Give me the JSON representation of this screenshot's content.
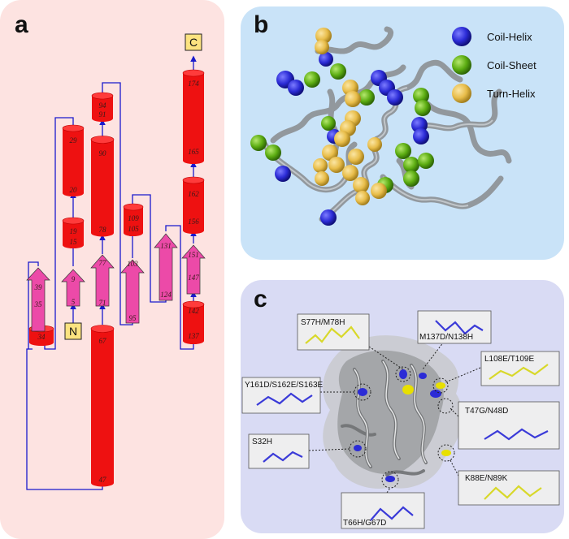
{
  "panels": {
    "a": {
      "label": "a"
    },
    "b": {
      "label": "b"
    },
    "c": {
      "label": "c"
    }
  },
  "topology": {
    "terminal_n": "N",
    "terminal_c": "C",
    "elements": [
      {
        "id": "h34",
        "type": "helix",
        "labels": [
          "34"
        ]
      },
      {
        "id": "s35",
        "type": "strand",
        "labels": [
          "39",
          "35"
        ]
      },
      {
        "id": "s5",
        "type": "strand",
        "labels": [
          "9",
          "5"
        ]
      },
      {
        "id": "h15",
        "type": "helix",
        "labels": [
          "19",
          "15"
        ]
      },
      {
        "id": "h20",
        "type": "helix",
        "labels": [
          "29",
          "20"
        ]
      },
      {
        "id": "s71",
        "type": "strand",
        "labels": [
          "77",
          "71"
        ]
      },
      {
        "id": "h47",
        "type": "helix",
        "labels": [
          "67",
          "47"
        ]
      },
      {
        "id": "h78",
        "type": "helix",
        "labels": [
          "90",
          "78"
        ]
      },
      {
        "id": "h91",
        "type": "helix",
        "labels": [
          "94",
          "91"
        ]
      },
      {
        "id": "s95",
        "type": "strand",
        "labels": [
          "103",
          "95"
        ]
      },
      {
        "id": "h105",
        "type": "helix",
        "labels": [
          "109",
          "105"
        ]
      },
      {
        "id": "s124",
        "type": "strand",
        "labels": [
          "131",
          "124"
        ]
      },
      {
        "id": "h137",
        "type": "helix",
        "labels": [
          "142",
          "137"
        ]
      },
      {
        "id": "s147",
        "type": "strand",
        "labels": [
          "151",
          "147"
        ]
      },
      {
        "id": "h156",
        "type": "helix",
        "labels": [
          "162",
          "156"
        ]
      },
      {
        "id": "h165",
        "type": "helix",
        "labels": [
          "174",
          "165"
        ]
      }
    ]
  },
  "legend": [
    {
      "label": "Coil-Helix",
      "color": "#2b2bd6"
    },
    {
      "label": "Coil-Sheet",
      "color": "#5cad12"
    },
    {
      "label": "Turn-Helix",
      "color": "#e8bd4a"
    }
  ],
  "mutations": [
    {
      "label": "S77H/M78H"
    },
    {
      "label": "M137D/N138H"
    },
    {
      "label": "L108E/T109E"
    },
    {
      "label": "Y161D/S162E/S163E"
    },
    {
      "label": "T47G/N48D"
    },
    {
      "label": "S32H"
    },
    {
      "label": "K88E/N89K"
    },
    {
      "label": "T66H/G67D"
    }
  ],
  "colors": {
    "helix": "#ee1111",
    "strand": "#ec4aa8",
    "connector": "#1a1acc",
    "panel_a_bg": "#fde3e1",
    "panel_b_bg": "#c9e3f8",
    "panel_c_bg": "#d9dbf4"
  }
}
